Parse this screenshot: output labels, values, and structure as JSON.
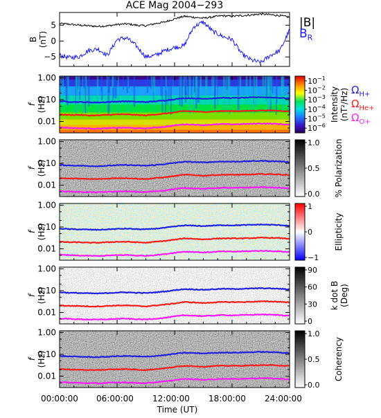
{
  "title": "ACE Mag 2004−293",
  "colors": {
    "b_total": "#000000",
    "b_r": "#1a1aff",
    "h_plus": "#1f1fe0",
    "he_plus": "#ff1a1a",
    "o_plus": "#ff1aff"
  },
  "legend": {
    "b_total": "|B|",
    "b_r_main": "B",
    "b_r_sub": "R",
    "omega": "Ω",
    "h_sub": "H+",
    "he_sub": "He+",
    "o_sub": "O+"
  },
  "x_axis": {
    "label": "Time (UT)",
    "ticks": [
      "00:00:00",
      "06:00:00",
      "12:00:00",
      "18:00:00",
      "24:00:00"
    ],
    "range_hours": [
      0,
      24
    ]
  },
  "panels": [
    {
      "type": "line",
      "ylabel_top": "B",
      "ylabel_bottom": "(nT)",
      "ylim": [
        -8,
        9
      ],
      "yticks": [
        "5",
        "0",
        "−5"
      ],
      "ytick_values": [
        5,
        0,
        -5
      ]
    },
    {
      "type": "spectrogram",
      "colormap": "rainbow",
      "ylabel_top": "f",
      "ylabel_bottom": "(Hz)",
      "yticks": [
        "1.00",
        "0.10",
        "0.01"
      ],
      "ylim_hz": [
        0.003,
        1.2
      ],
      "colorbar_label": "Intensity",
      "colorbar_units": "(nT²/Hz)",
      "colorbar_base": "10",
      "colorbar_exps": [
        "−1",
        "−2",
        "−3",
        "−4",
        "−5",
        "−6"
      ],
      "colorbar_range_log": [
        -6.5,
        -0.5
      ]
    },
    {
      "type": "spectrogram",
      "colormap": "gray",
      "ylabel_top": "f",
      "ylabel_bottom": "(Hz)",
      "yticks": [
        "1.00",
        "0.10",
        "0.01"
      ],
      "ylim_hz": [
        0.003,
        1.2
      ],
      "colorbar_label": "% Polarization",
      "colorbar_ticks": [
        "1.0",
        "0.5",
        "0.0"
      ],
      "colorbar_range": [
        0,
        1
      ]
    },
    {
      "type": "spectrogram",
      "colormap": "bwr",
      "ylabel_top": "f",
      "ylabel_bottom": "(Hz)",
      "yticks": [
        "1.00",
        "0.10",
        "0.01"
      ],
      "ylim_hz": [
        0.003,
        1.2
      ],
      "colorbar_label": "Ellipticity",
      "colorbar_ticks": [
        "1",
        "0",
        "−1"
      ],
      "colorbar_range": [
        -1,
        1
      ]
    },
    {
      "type": "spectrogram",
      "colormap": "gray",
      "ylabel_top": "f",
      "ylabel_bottom": "(Hz)",
      "yticks": [
        "1.00",
        "0.10",
        "0.01"
      ],
      "ylim_hz": [
        0.003,
        1.2
      ],
      "colorbar_label": "k dot B",
      "colorbar_units": "(Deg)",
      "colorbar_ticks": [
        "90",
        "60",
        "30",
        "0"
      ],
      "colorbar_range": [
        0,
        90
      ]
    },
    {
      "type": "spectrogram",
      "colormap": "gray",
      "ylabel_top": "f",
      "ylabel_bottom": "(Hz)",
      "yticks": [
        "1.00",
        "0.10",
        "0.01"
      ],
      "ylim_hz": [
        0.003,
        1.2
      ],
      "colorbar_label": "Coherency",
      "colorbar_ticks": [
        "1.0",
        "0.5",
        "0.0"
      ],
      "colorbar_range": [
        0,
        1
      ]
    }
  ],
  "chart_data": {
    "type": "line",
    "title": "ACE Mag 2004−293",
    "xlabel": "Time (UT)",
    "xlim": [
      0,
      24
    ],
    "x_hours": [
      0,
      1,
      2,
      3,
      4,
      5,
      6,
      7,
      8,
      9,
      10,
      11,
      12,
      13,
      14,
      15,
      16,
      17,
      18,
      19,
      20,
      21,
      22,
      23,
      24
    ],
    "series": [
      {
        "name": "|B|",
        "units": "nT",
        "values": [
          5.5,
          5.3,
          5.0,
          4.8,
          4.6,
          4.8,
          5.2,
          5.4,
          5.0,
          4.8,
          5.5,
          6.0,
          7.0,
          7.8,
          7.5,
          7.2,
          7.6,
          8.0,
          7.8,
          8.0,
          8.2,
          8.5,
          8.3,
          8.0,
          7.5
        ]
      },
      {
        "name": "B_R",
        "units": "nT",
        "values": [
          -4.5,
          -5.2,
          -5.0,
          -3.0,
          -2.5,
          -4.5,
          0.5,
          1.0,
          -1.5,
          -5.0,
          -4.5,
          -3.0,
          -2.0,
          -1.5,
          4.5,
          6.0,
          3.0,
          1.5,
          0.5,
          -4.0,
          -6.0,
          -6.8,
          -4.5,
          -3.0,
          3.5
        ]
      },
      {
        "name": "ΩH+",
        "units": "Hz",
        "values": [
          0.085,
          0.08,
          0.078,
          0.076,
          0.074,
          0.078,
          0.082,
          0.084,
          0.08,
          0.078,
          0.084,
          0.092,
          0.105,
          0.118,
          0.115,
          0.11,
          0.116,
          0.122,
          0.119,
          0.122,
          0.125,
          0.13,
          0.126,
          0.122,
          0.114
        ]
      },
      {
        "name": "ΩHe+",
        "units": "Hz",
        "values": [
          0.021,
          0.02,
          0.02,
          0.019,
          0.019,
          0.02,
          0.021,
          0.021,
          0.02,
          0.019,
          0.021,
          0.023,
          0.026,
          0.03,
          0.029,
          0.027,
          0.029,
          0.03,
          0.03,
          0.03,
          0.031,
          0.032,
          0.032,
          0.031,
          0.029
        ]
      },
      {
        "name": "ΩO+",
        "units": "Hz",
        "values": [
          0.0053,
          0.0051,
          0.0049,
          0.0048,
          0.0047,
          0.0049,
          0.0051,
          0.0052,
          0.0049,
          0.0048,
          0.0052,
          0.0057,
          0.0066,
          0.0074,
          0.0072,
          0.0068,
          0.0072,
          0.0076,
          0.0074,
          0.0076,
          0.0078,
          0.0081,
          0.0079,
          0.0076,
          0.0071
        ]
      }
    ]
  }
}
